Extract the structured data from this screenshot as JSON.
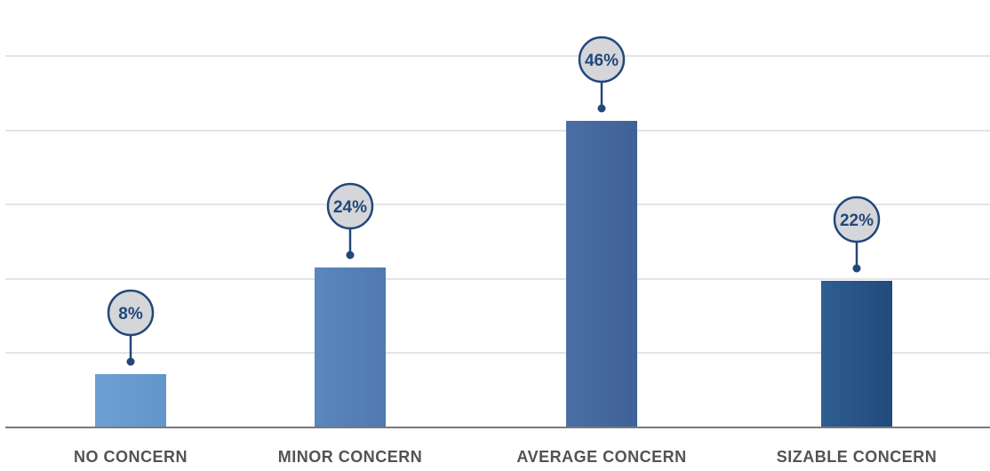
{
  "chart_data": {
    "type": "bar",
    "categories": [
      "NO CONCERN",
      "MINOR CONCERN",
      "AVERAGE CONCERN",
      "SIZABLE CONCERN"
    ],
    "values": [
      8,
      24,
      46,
      22
    ],
    "data_labels": [
      "8%",
      "24%",
      "46%",
      "22%"
    ],
    "ylim": [
      0,
      50
    ],
    "grid": true,
    "legend": "none",
    "title": "",
    "xlabel": "",
    "ylabel": ""
  },
  "colors": {
    "bars": [
      [
        "#6e9fd3",
        "#6196cb"
      ],
      [
        "#5a87bd",
        "#5079b0"
      ],
      [
        "#4a6ea5",
        "#3f6197"
      ],
      [
        "#2f5e92",
        "#214a7d"
      ]
    ],
    "gridline": "#c8c8c8",
    "baseline": "#7a7a7a",
    "label_text": "#535353",
    "bubble_fill": "#d4d6d9",
    "bubble_stroke": "#22487a",
    "bubble_text": "#22487a"
  }
}
